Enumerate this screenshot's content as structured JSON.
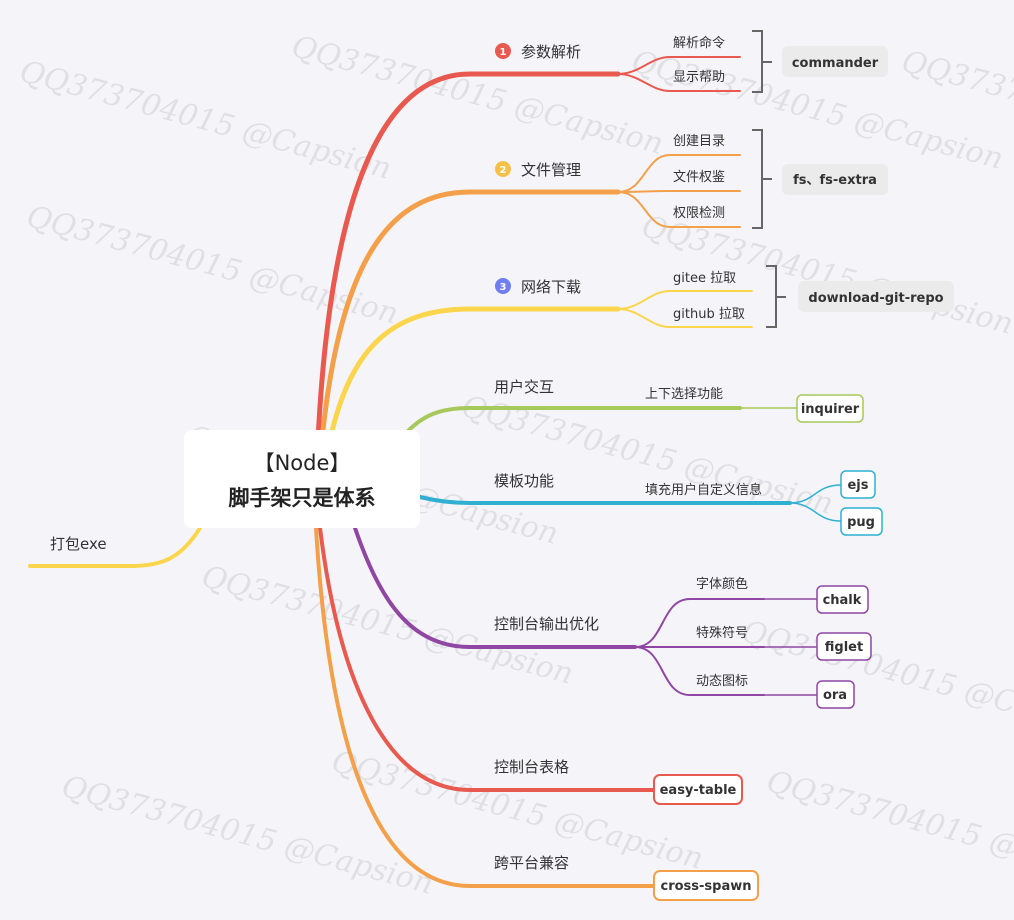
{
  "watermark": "QQ373704015 @Capsion",
  "colors": {
    "red": "#e85a4f",
    "orange": "#f4a04a",
    "yellow": "#fbd54c",
    "green": "#a7c85b",
    "cyan": "#2fb0d1",
    "purple": "#8f47a3",
    "gray": "#555555"
  },
  "root": {
    "line1": "【Node】",
    "line2": "脚手架只是体系"
  },
  "left_branch": {
    "label": "打包exe",
    "color": "#fbd54c"
  },
  "branches": [
    {
      "label": "参数解析",
      "badge": "1",
      "badge_color": "#e85a4f",
      "color": "#e85a4f",
      "children": [
        "解析命令",
        "显示帮助"
      ],
      "tags": [
        "commander"
      ],
      "tag_style": "group"
    },
    {
      "label": "文件管理",
      "badge": "2",
      "badge_color": "#f4c04a",
      "color": "#f4a04a",
      "children": [
        "创建目录",
        "文件权鉴",
        "权限检测"
      ],
      "tags": [
        "fs、fs-extra"
      ],
      "tag_style": "group"
    },
    {
      "label": "网络下载",
      "badge": "3",
      "badge_color": "#6f7ef0",
      "color": "#fbd54c",
      "children": [
        "gitee 拉取",
        "github 拉取"
      ],
      "tags": [
        "download-git-repo"
      ],
      "tag_style": "group"
    },
    {
      "label": "用户交互",
      "color": "#a7c85b",
      "children": [
        "上下选择功能"
      ],
      "tags": [
        "inquirer"
      ],
      "tag_style": "box"
    },
    {
      "label": "模板功能",
      "color": "#2fb0d1",
      "children": [
        "填充用户自定义信息"
      ],
      "tags": [
        "ejs",
        "pug"
      ],
      "tag_style": "box"
    },
    {
      "label": "控制台输出优化",
      "color": "#8f47a3",
      "children": [
        "字体颜色",
        "特殊符号",
        "动态图标"
      ],
      "tags": [
        "chalk",
        "figlet",
        "ora"
      ],
      "tag_style": "box"
    },
    {
      "label": "控制台表格",
      "color": "#e85a4f",
      "children": [],
      "tags": [
        "easy-table"
      ],
      "tag_style": "box"
    },
    {
      "label": "跨平台兼容",
      "color": "#f4a04a",
      "children": [],
      "tags": [
        "cross-spawn"
      ],
      "tag_style": "box"
    }
  ]
}
